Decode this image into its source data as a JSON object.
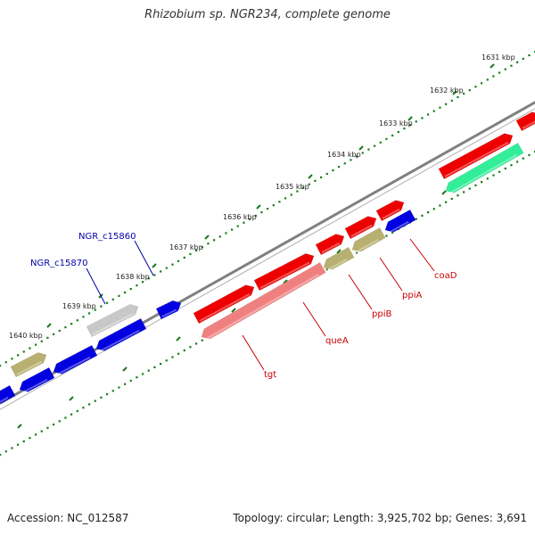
{
  "title": "Rhizobium sp. NGR234, complete genome",
  "footer": {
    "accession": "Accession: NC_012587",
    "topology": "Topology: circular; Length: 3,925,702 bp; Genes: 3,691"
  },
  "colors": {
    "backbone": "#808080",
    "tick": "#1a7a1a",
    "red": "#ee0000",
    "pink": "#f08080",
    "blue": "#0000e0",
    "olive": "#b8b070",
    "gray": "#c8c8c8",
    "teal": "#33ee99",
    "label_red": "#cc0000",
    "label_blue": "#0000aa"
  },
  "kbp_ticks": [
    "1631 kbp",
    "1632 kbp",
    "1633 kbp",
    "1634 kbp",
    "1635 kbp",
    "1636 kbp",
    "1637 kbp",
    "1638 kbp",
    "1639 kbp",
    "1640 kbp"
  ],
  "gene_labels": [
    {
      "name": "NGR_c15860",
      "color": "blue"
    },
    {
      "name": "NGR_c15870",
      "color": "blue"
    },
    {
      "name": "coaD",
      "color": "red"
    },
    {
      "name": "ppiA",
      "color": "red"
    },
    {
      "name": "ppiB",
      "color": "red"
    },
    {
      "name": "queA",
      "color": "red"
    },
    {
      "name": "tgt",
      "color": "red"
    }
  ]
}
